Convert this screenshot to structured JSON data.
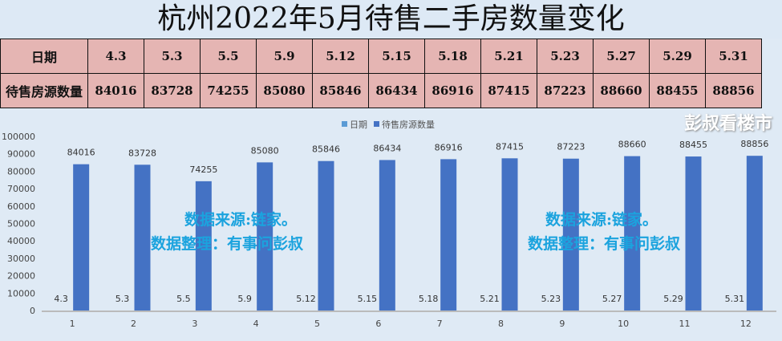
{
  "title": "杭州2022年5月待售二手房数量变化",
  "table": {
    "row1_label": "日期",
    "row2_label": "待售房源数量"
  },
  "chart_data": {
    "type": "bar",
    "categories": [
      "1",
      "2",
      "3",
      "4",
      "5",
      "6",
      "7",
      "8",
      "9",
      "10",
      "11",
      "12"
    ],
    "series": [
      {
        "name": "日期",
        "values": [
          4.3,
          5.3,
          5.5,
          5.9,
          5.12,
          5.15,
          5.18,
          5.21,
          5.23,
          5.27,
          5.29,
          5.31
        ],
        "labels": [
          "4.3",
          "5.3",
          "5.5",
          "5.9",
          "5.12",
          "5.15",
          "5.18",
          "5.21",
          "5.23",
          "5.27",
          "5.29",
          "5.31"
        ],
        "color": "#5b9bd5"
      },
      {
        "name": "待售房源数量",
        "values": [
          84016,
          83728,
          74255,
          85080,
          85846,
          86434,
          86916,
          87415,
          87223,
          88660,
          88455,
          88856
        ],
        "color": "#4472c4"
      }
    ],
    "yticks": [
      0,
      10000,
      20000,
      30000,
      40000,
      50000,
      60000,
      70000,
      80000,
      90000,
      100000
    ],
    "ylim": [
      0,
      100000
    ],
    "legend": "top"
  },
  "annotations": {
    "line1": "数据来源:链家。",
    "line2": "数据整理：有事问彭叔"
  },
  "watermark": "彭叔看楼市"
}
